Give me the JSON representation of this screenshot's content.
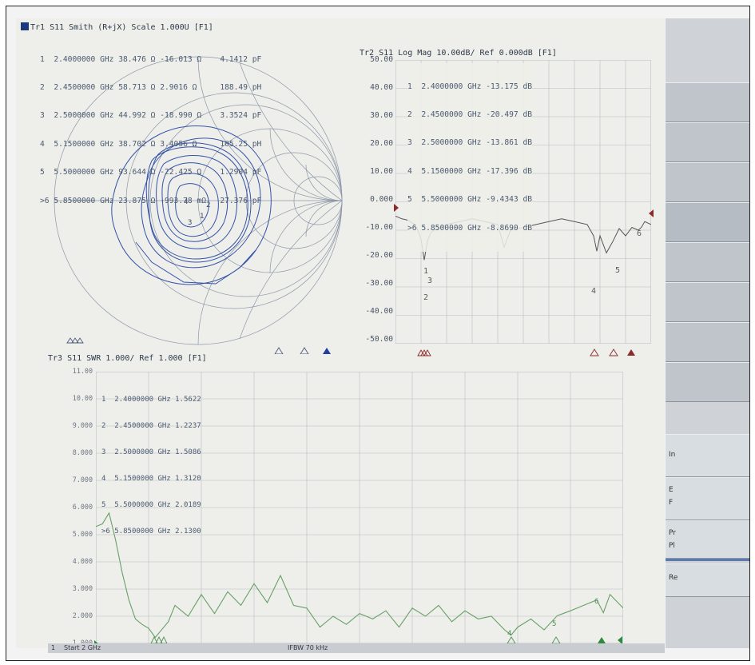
{
  "tr1": {
    "title": "Tr1 S11 Smith (R+jX) Scale 1.000U [F1]",
    "markers": [
      {
        "label": "1",
        "freq": "2.4000000 GHz",
        "r": "38.476 Ω",
        "x": "-16.013 Ω",
        "c": "4.1412 pF"
      },
      {
        "label": "2",
        "freq": "2.4500000 GHz",
        "r": "58.713 Ω",
        "x": "2.9016 Ω",
        "c": "188.49 pH"
      },
      {
        "label": "3",
        "freq": "2.5000000 GHz",
        "r": "44.992 Ω",
        "x": "-18.990 Ω",
        "c": "3.3524 pF"
      },
      {
        "label": "4",
        "freq": "5.1500000 GHz",
        "r": "38.702 Ω",
        "x": "3.4056 Ω",
        "c": "105.25 pH"
      },
      {
        "label": "5",
        "freq": "5.5000000 GHz",
        "r": "93.644 Ω",
        "x": "-22.425 Ω",
        "c": "1.2904 pF"
      },
      {
        "label": ">6",
        "freq": "5.8500000 GHz",
        "r": "23.875 Ω",
        "x": "-993.78 mΩ",
        "c": "27.376 pF"
      }
    ]
  },
  "tr2": {
    "title": "Tr2 S11 Log Mag 10.00dB/ Ref 0.000dB [F1]",
    "markers": [
      {
        "label": "1",
        "freq": "2.4000000",
        "unit": "GHz",
        "value": "-13.175",
        "vunit": "dB"
      },
      {
        "label": "2",
        "freq": "2.4500000",
        "unit": "GHz",
        "value": "-20.497",
        "vunit": "dB"
      },
      {
        "label": "3",
        "freq": "2.5000000",
        "unit": "GHz",
        "value": "-13.861",
        "vunit": "dB"
      },
      {
        "label": "4",
        "freq": "5.1500000",
        "unit": "GHz",
        "value": "-17.396",
        "vunit": "dB"
      },
      {
        "label": "5",
        "freq": "5.5000000",
        "unit": "GHz",
        "value": "-9.4343",
        "vunit": "dB"
      },
      {
        "label": ">6",
        "freq": "5.8500000",
        "unit": "GHz",
        "value": "-8.8690",
        "vunit": "dB"
      }
    ],
    "yticks": [
      "50.00",
      "40.00",
      "30.00",
      "20.00",
      "10.00",
      "0.000",
      "-10.00",
      "-20.00",
      "-30.00",
      "-40.00",
      "-50.00"
    ]
  },
  "tr3": {
    "title": "Tr3 S11 SWR 1.000/ Ref 1.000 [F1]",
    "markers": [
      {
        "label": "1",
        "freq": "2.4000000 GHz",
        "value": "1.5622"
      },
      {
        "label": "2",
        "freq": "2.4500000 GHz",
        "value": "1.2237"
      },
      {
        "label": "3",
        "freq": "2.5000000 GHz",
        "value": "1.5086"
      },
      {
        "label": "4",
        "freq": "5.1500000 GHz",
        "value": "1.3120"
      },
      {
        "label": "5",
        "freq": "5.5000000 GHz",
        "value": "2.0189"
      },
      {
        "label": ">6",
        "freq": "5.8500000 GHz",
        "value": "2.1300"
      }
    ],
    "yticks": [
      "11.00",
      "10.00",
      "9.000",
      "8.000",
      "7.000",
      "6.000",
      "5.000",
      "4.000",
      "3.000",
      "2.000",
      "1.000"
    ]
  },
  "status": {
    "channel": "1",
    "start": "Start 2 GHz",
    "ifbw": "IFBW 70 kHz"
  },
  "softkeys": [
    "In",
    "E",
    "F",
    "Pr",
    "Pl",
    "Re"
  ],
  "colors": {
    "smith_trace": "#3553a8",
    "logmag_trace": "#555555",
    "swr_trace": "#67a067",
    "ref_marker": "#8b2a2a",
    "active_marker_tr1": "#1d3fa0",
    "active_marker_tr3": "#2e8b3e"
  },
  "chart_data": [
    {
      "type": "line",
      "title": "Tr2 S11 Log Mag 10.00dB/ Ref 0.000dB [F1]",
      "xlim": [
        2,
        6
      ],
      "ylim": [
        -50,
        50
      ],
      "grid": true,
      "series": [
        {
          "x": [
            2.0,
            2.1,
            2.2,
            2.3,
            2.35,
            2.4,
            2.45,
            2.5,
            2.55,
            2.6,
            2.8,
            3.0,
            3.2,
            3.4,
            3.6,
            3.7,
            3.8,
            4.0,
            4.2,
            4.4,
            4.6,
            4.8,
            5.0,
            5.1,
            5.15,
            5.2,
            5.3,
            5.4,
            5.5,
            5.6,
            5.7,
            5.8,
            5.85,
            5.9,
            6.0
          ],
          "y": [
            -5,
            -6,
            -6.5,
            -8,
            -10,
            -13.2,
            -20.5,
            -13.9,
            -11,
            -10,
            -8,
            -7,
            -6,
            -7,
            -8,
            -16,
            -10,
            -9,
            -8,
            -7,
            -6,
            -7,
            -8,
            -12,
            -17.4,
            -12,
            -18,
            -14,
            -9.4,
            -12,
            -9,
            -10,
            -8.9,
            -7,
            -8
          ]
        }
      ]
    },
    {
      "type": "line",
      "title": "Tr3 S11 SWR 1.000/ Ref 1.000 [F1]",
      "xlim": [
        2,
        6
      ],
      "ylim": [
        1,
        11
      ],
      "grid": true,
      "series": [
        {
          "x": [
            2.0,
            2.05,
            2.1,
            2.15,
            2.2,
            2.25,
            2.3,
            2.35,
            2.4,
            2.45,
            2.5,
            2.55,
            2.6,
            2.7,
            2.8,
            2.9,
            3.0,
            3.1,
            3.2,
            3.3,
            3.4,
            3.5,
            3.6,
            3.7,
            3.8,
            3.9,
            4.0,
            4.1,
            4.2,
            4.3,
            4.4,
            4.5,
            4.6,
            4.7,
            4.8,
            4.9,
            5.0,
            5.1,
            5.15,
            5.2,
            5.3,
            5.4,
            5.5,
            5.6,
            5.7,
            5.8,
            5.85,
            5.9,
            6.0
          ],
          "y": [
            5.3,
            5.4,
            5.8,
            4.8,
            3.6,
            2.6,
            1.9,
            1.7,
            1.56,
            1.22,
            1.51,
            1.8,
            2.4,
            2.0,
            2.8,
            2.1,
            2.9,
            2.4,
            3.2,
            2.5,
            3.5,
            2.4,
            2.3,
            1.6,
            2.0,
            1.7,
            2.1,
            1.9,
            2.2,
            1.6,
            2.3,
            2.0,
            2.4,
            1.8,
            2.2,
            1.9,
            2.0,
            1.5,
            1.31,
            1.6,
            1.9,
            1.5,
            2.02,
            2.2,
            2.4,
            2.6,
            2.13,
            2.8,
            2.3
          ]
        }
      ]
    }
  ]
}
